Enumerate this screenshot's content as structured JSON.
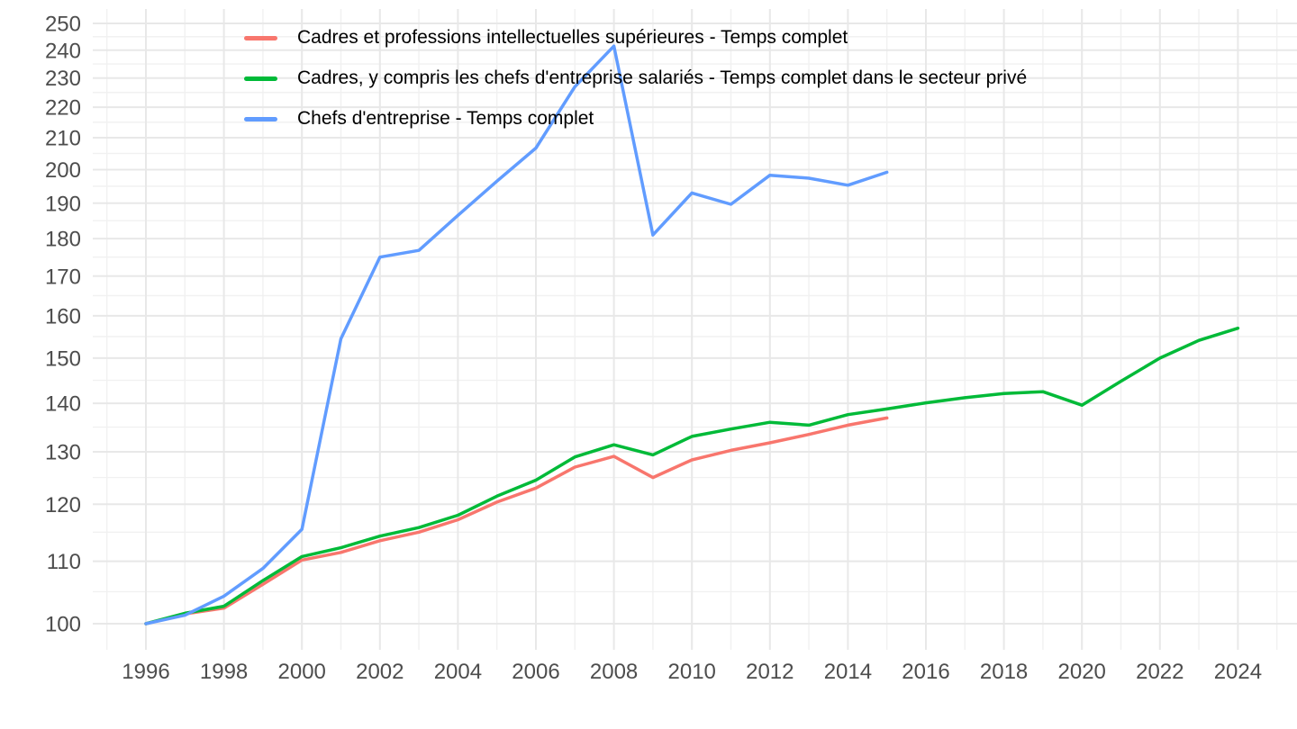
{
  "chart_data": {
    "type": "line",
    "title": "",
    "xlabel": "",
    "ylabel": "",
    "background": "#FFFFFF",
    "grid": "major+minor",
    "gridline_major_color": "#E8E8E8",
    "gridline_minor_color": "#F1F1F1",
    "tick_label_color": "#4D4D4D",
    "legend_position": "top-left",
    "x_axis": {
      "ticks": [
        1996,
        1998,
        2000,
        2002,
        2004,
        2006,
        2008,
        2010,
        2012,
        2014,
        2016,
        2018,
        2020,
        2022,
        2024
      ],
      "minor_ticks": [
        1995,
        1997,
        1999,
        2001,
        2003,
        2005,
        2007,
        2009,
        2011,
        2013,
        2015,
        2017,
        2019,
        2021,
        2023,
        2025
      ],
      "range": [
        1994.6,
        2025.5
      ]
    },
    "y_axis": {
      "scale": "log10",
      "ticks": [
        100,
        110,
        120,
        130,
        140,
        150,
        160,
        170,
        180,
        190,
        200,
        210,
        220,
        230,
        240,
        250
      ],
      "minor_ticks": [
        105,
        115,
        125,
        135,
        145,
        155,
        165,
        175,
        185,
        195,
        205,
        215,
        225,
        235,
        245
      ],
      "range": [
        97.5,
        256
      ]
    },
    "series": [
      {
        "name": "Cadres et professions intellectuelles supérieures - Temps complet",
        "color": "#F8766D",
        "x": [
          1996,
          1997,
          1998,
          1999,
          2000,
          2001,
          2002,
          2003,
          2004,
          2005,
          2006,
          2007,
          2008,
          2009,
          2010,
          2011,
          2012,
          2013,
          2014,
          2015
        ],
        "values": [
          100,
          101.5,
          102.4,
          106.2,
          110.2,
          111.5,
          113.5,
          115.0,
          117.2,
          120.4,
          123.0,
          127.0,
          129.1,
          125.0,
          128.4,
          130.3,
          131.8,
          133.5,
          135.4,
          136.9
        ]
      },
      {
        "name": "Cadres, y compris les chefs d'entreprise salariés - Temps complet dans le secteur privé",
        "color": "#00BA38",
        "x": [
          1996,
          1997,
          1998,
          1999,
          2000,
          2001,
          2002,
          2003,
          2004,
          2005,
          2006,
          2007,
          2008,
          2009,
          2010,
          2011,
          2012,
          2013,
          2014,
          2015,
          2016,
          2017,
          2018,
          2019,
          2020,
          2021,
          2022,
          2023,
          2024
        ],
        "values": [
          100,
          101.6,
          102.7,
          106.8,
          110.8,
          112.3,
          114.3,
          115.8,
          118.0,
          121.5,
          124.5,
          129.0,
          131.4,
          129.4,
          133.1,
          134.6,
          136.0,
          135.4,
          137.6,
          138.8,
          140.1,
          141.2,
          142.1,
          142.5,
          139.6,
          144.8,
          150.0,
          154.1,
          157.0
        ]
      },
      {
        "name": "Chefs d'entreprise - Temps complet",
        "color": "#619CFF",
        "x": [
          1996,
          1997,
          1998,
          1999,
          2000,
          2001,
          2002,
          2003,
          2004,
          2005,
          2006,
          2007,
          2008,
          2009,
          2010,
          2011,
          2012,
          2013,
          2014,
          2015
        ],
        "values": [
          100,
          101.3,
          104.3,
          108.8,
          115.5,
          154.5,
          175.0,
          176.8,
          186.5,
          196.5,
          206.7,
          227.0,
          241.5,
          181.0,
          193.0,
          189.7,
          198.3,
          197.4,
          195.3,
          199.2
        ]
      }
    ]
  }
}
